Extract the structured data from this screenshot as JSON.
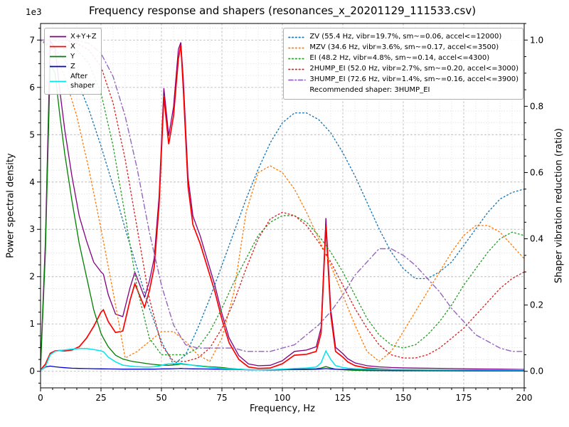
{
  "title": "Frequency response and shapers (resonances_x_20201129_111533.csv)",
  "axes": {
    "offset_label": "1e3",
    "x_label": "Frequency, Hz",
    "y_left_label": "Power spectral density",
    "y_right_label": "Shaper vibration reduction (ratio)",
    "x_ticks": [
      0,
      25,
      50,
      75,
      100,
      125,
      150,
      175,
      200
    ],
    "y_left_ticks": [
      0,
      1,
      2,
      3,
      4,
      5,
      6,
      7
    ],
    "y_right_ticks": [
      "0.0",
      "0.2",
      "0.4",
      "0.6",
      "0.8",
      "1.0"
    ]
  },
  "legend_psd": {
    "items": [
      {
        "name": "xyz",
        "label": "X+Y+Z",
        "color": "#800080",
        "style": "solid"
      },
      {
        "name": "x",
        "label": "X",
        "color": "#ff0000",
        "style": "solid"
      },
      {
        "name": "y",
        "label": "Y",
        "color": "#008000",
        "style": "solid"
      },
      {
        "name": "z",
        "label": "Z",
        "color": "#0000cd",
        "style": "solid"
      },
      {
        "name": "after-shaper",
        "label": "After\nshaper",
        "color": "#00e5ee",
        "style": "solid"
      }
    ]
  },
  "legend_shapers": {
    "items": [
      {
        "name": "zv",
        "label": "ZV (55.4 Hz, vibr=19.7%, sm~=0.06, accel<=12000)",
        "color": "#1f77b4",
        "style": "dotted"
      },
      {
        "name": "mzv",
        "label": "MZV (34.6 Hz, vibr=3.6%, sm~=0.17, accel<=3500)",
        "color": "#ff7f0e",
        "style": "dotted"
      },
      {
        "name": "ei",
        "label": "EI (48.2 Hz, vibr=4.8%, sm~=0.14, accel<=4300)",
        "color": "#2ca02c",
        "style": "dotted"
      },
      {
        "name": "2hump-ei",
        "label": "2HUMP_EI (52.0 Hz, vibr=2.7%, sm~=0.20, accel<=3000)",
        "color": "#d62728",
        "style": "dotted"
      },
      {
        "name": "3hump-ei",
        "label": "3HUMP_EI (72.6 Hz, vibr=1.4%, sm~=0.16, accel<=3900)",
        "color": "#9467bd",
        "style": "dashdot"
      }
    ],
    "note": "Recommended shaper: 3HUMP_EI"
  },
  "chart_data": {
    "type": "line",
    "title": "Frequency response and shapers (resonances_x_20201129_111533.csv)",
    "xlabel": "Frequency, Hz",
    "ylabel_left": "Power spectral density",
    "ylabel_right": "Shaper vibration reduction (ratio)",
    "xlim": [
      0,
      200
    ],
    "ylim_left": [
      -350,
      7350
    ],
    "ylim_right": [
      -0.05,
      1.05
    ],
    "x_major_step": 25,
    "x_minor_step": 5,
    "y_left_major_step": 1000,
    "y_left_minor_step": 250,
    "y_right_major_step": 0.2,
    "y_right_minor_step": 0.05,
    "grid": true,
    "recommended_shaper": "3HUMP_EI",
    "psd_freqs": [
      0,
      2,
      4,
      6,
      8,
      10,
      13,
      16,
      19,
      22,
      25,
      26,
      28,
      31,
      34,
      37,
      39,
      41,
      43,
      45,
      47,
      49,
      51,
      52,
      53,
      55,
      57,
      58,
      59,
      61,
      63,
      66,
      69,
      72,
      75,
      78,
      82,
      86,
      90,
      95,
      100,
      105,
      110,
      114,
      116,
      118,
      120,
      122,
      125,
      127,
      130,
      135,
      140,
      145,
      150,
      160,
      170,
      180,
      190,
      200
    ],
    "psd_series": [
      {
        "name": "X+Y+Z",
        "color": "#800080",
        "style": "solid",
        "width": 1.3,
        "axis": "left",
        "values": [
          110,
          2740,
          6990,
          6825,
          5925,
          5105,
          4115,
          3280,
          2758,
          2305,
          2102,
          2052,
          1620,
          1208,
          1156,
          1766,
          2095,
          1830,
          1565,
          1900,
          2391,
          3683,
          5982,
          5480,
          4977,
          5589,
          6803,
          6950,
          6208,
          4094,
          3282,
          2865,
          2348,
          1835,
          1222,
          702,
          331,
          155,
          117,
          126,
          225,
          420,
          448,
          518,
          918,
          3238,
          1318,
          507,
          373,
          266,
          178,
          118,
          93,
          80,
          73,
          65,
          58,
          50,
          45,
          40
        ]
      },
      {
        "name": "X",
        "color": "#ff0000",
        "style": "solid",
        "width": 1.7,
        "axis": "left",
        "values": [
          30,
          150,
          380,
          430,
          440,
          430,
          450,
          520,
          700,
          950,
          1250,
          1300,
          1050,
          820,
          850,
          1500,
          1850,
          1600,
          1350,
          1700,
          2200,
          3500,
          5800,
          5300,
          4800,
          5400,
          6600,
          6900,
          6000,
          3900,
          3100,
          2700,
          2200,
          1700,
          1100,
          600,
          250,
          90,
          60,
          70,
          160,
          340,
          360,
          420,
          800,
          3080,
          1200,
          420,
          300,
          200,
          120,
          70,
          50,
          40,
          35,
          30,
          25,
          20,
          18,
          15
        ]
      },
      {
        "name": "Y",
        "color": "#008000",
        "style": "solid",
        "width": 1.3,
        "axis": "left",
        "values": [
          60,
          2500,
          6500,
          6300,
          5400,
          4600,
          3600,
          2700,
          2000,
          1300,
          800,
          700,
          520,
          340,
          260,
          220,
          200,
          185,
          170,
          155,
          145,
          135,
          130,
          128,
          125,
          135,
          145,
          155,
          150,
          140,
          130,
          115,
          100,
          90,
          80,
          62,
          45,
          33,
          27,
          26,
          32,
          42,
          48,
          55,
          70,
          100,
          70,
          45,
          33,
          28,
          22,
          16,
          13,
          11,
          10,
          9,
          8,
          7,
          6,
          5
        ]
      },
      {
        "name": "Z",
        "color": "#0000cd",
        "style": "solid",
        "width": 1.3,
        "axis": "left",
        "values": [
          20,
          90,
          110,
          95,
          85,
          75,
          65,
          60,
          58,
          55,
          52,
          52,
          50,
          48,
          46,
          46,
          45,
          45,
          45,
          45,
          46,
          48,
          52,
          52,
          52,
          54,
          58,
          60,
          58,
          54,
          52,
          50,
          48,
          45,
          42,
          40,
          36,
          32,
          30,
          30,
          33,
          38,
          40,
          43,
          48,
          58,
          48,
          42,
          40,
          38,
          36,
          32,
          30,
          29,
          28,
          26,
          25,
          23,
          21,
          20
        ]
      },
      {
        "name": "After shaper",
        "color": "#00e5ee",
        "style": "solid",
        "width": 1.5,
        "axis": "left",
        "values": [
          20,
          100,
          350,
          420,
          440,
          450,
          470,
          480,
          480,
          460,
          430,
          415,
          300,
          200,
          130,
          110,
          100,
          95,
          90,
          90,
          95,
          110,
          140,
          150,
          155,
          160,
          168,
          170,
          160,
          145,
          125,
          105,
          88,
          75,
          60,
          50,
          42,
          35,
          30,
          35,
          45,
          60,
          70,
          90,
          180,
          430,
          250,
          120,
          80,
          65,
          55,
          45,
          40,
          38,
          35,
          32,
          30,
          30,
          28,
          28
        ]
      }
    ],
    "shaper_freqs": [
      0,
      5,
      10,
      15,
      20,
      25,
      30,
      35,
      40,
      45,
      50,
      55,
      60,
      65,
      70,
      75,
      80,
      85,
      90,
      95,
      100,
      105,
      110,
      115,
      120,
      125,
      130,
      135,
      140,
      145,
      150,
      155,
      160,
      165,
      170,
      175,
      180,
      185,
      190,
      195,
      200
    ],
    "shaper_series": [
      {
        "name": "ZV",
        "shaper_freq_hz": 55.4,
        "vibr_pct": 19.7,
        "smoothing": 0.06,
        "max_accel": 12000,
        "color": "#1f77b4",
        "style": "dotted",
        "width": 1.4,
        "axis": "right",
        "values": [
          1.0,
          0.98,
          0.94,
          0.88,
          0.79,
          0.68,
          0.56,
          0.43,
          0.31,
          0.19,
          0.09,
          0.02,
          0.05,
          0.13,
          0.22,
          0.32,
          0.42,
          0.52,
          0.61,
          0.69,
          0.75,
          0.78,
          0.78,
          0.76,
          0.72,
          0.66,
          0.59,
          0.51,
          0.43,
          0.36,
          0.31,
          0.28,
          0.28,
          0.3,
          0.33,
          0.38,
          0.43,
          0.48,
          0.52,
          0.54,
          0.55
        ]
      },
      {
        "name": "MZV",
        "shaper_freq_hz": 34.6,
        "vibr_pct": 3.6,
        "smoothing": 0.17,
        "max_accel": 3500,
        "color": "#ff7f0e",
        "style": "dotted",
        "width": 1.4,
        "axis": "right",
        "values": [
          1.0,
          0.97,
          0.89,
          0.77,
          0.61,
          0.43,
          0.24,
          0.04,
          0.06,
          0.09,
          0.12,
          0.12,
          0.09,
          0.05,
          0.03,
          0.1,
          0.24,
          0.48,
          0.6,
          0.62,
          0.6,
          0.55,
          0.48,
          0.4,
          0.32,
          0.23,
          0.14,
          0.06,
          0.03,
          0.06,
          0.12,
          0.18,
          0.24,
          0.3,
          0.36,
          0.41,
          0.44,
          0.44,
          0.42,
          0.38,
          0.34
        ]
      },
      {
        "name": "EI",
        "shaper_freq_hz": 48.2,
        "vibr_pct": 4.8,
        "smoothing": 0.14,
        "max_accel": 4300,
        "color": "#2ca02c",
        "style": "dotted",
        "width": 1.4,
        "axis": "right",
        "values": [
          1.0,
          1.0,
          0.99,
          0.97,
          0.93,
          0.84,
          0.68,
          0.47,
          0.25,
          0.1,
          0.05,
          0.05,
          0.05,
          0.07,
          0.12,
          0.19,
          0.27,
          0.34,
          0.41,
          0.45,
          0.47,
          0.47,
          0.45,
          0.41,
          0.36,
          0.3,
          0.23,
          0.16,
          0.11,
          0.08,
          0.07,
          0.08,
          0.11,
          0.15,
          0.2,
          0.26,
          0.31,
          0.36,
          0.4,
          0.42,
          0.41
        ]
      },
      {
        "name": "2HUMP_EI",
        "shaper_freq_hz": 52.0,
        "vibr_pct": 2.7,
        "smoothing": 0.2,
        "max_accel": 3000,
        "color": "#d62728",
        "style": "dotted",
        "width": 1.4,
        "axis": "right",
        "values": [
          1.0,
          1.0,
          1.0,
          0.99,
          0.97,
          0.92,
          0.81,
          0.64,
          0.43,
          0.22,
          0.08,
          0.03,
          0.03,
          0.04,
          0.07,
          0.13,
          0.21,
          0.31,
          0.4,
          0.46,
          0.48,
          0.47,
          0.44,
          0.39,
          0.33,
          0.26,
          0.19,
          0.13,
          0.08,
          0.05,
          0.04,
          0.04,
          0.05,
          0.07,
          0.1,
          0.13,
          0.17,
          0.21,
          0.25,
          0.28,
          0.3
        ]
      },
      {
        "name": "3HUMP_EI",
        "shaper_freq_hz": 72.6,
        "vibr_pct": 1.4,
        "smoothing": 0.16,
        "max_accel": 3900,
        "color": "#9467bd",
        "style": "dashdot",
        "width": 1.4,
        "axis": "right",
        "values": [
          1.0,
          1.0,
          1.0,
          1.0,
          0.99,
          0.96,
          0.89,
          0.77,
          0.61,
          0.42,
          0.26,
          0.14,
          0.08,
          0.07,
          0.07,
          0.07,
          0.07,
          0.06,
          0.06,
          0.06,
          0.07,
          0.08,
          0.11,
          0.14,
          0.18,
          0.23,
          0.29,
          0.33,
          0.37,
          0.37,
          0.35,
          0.32,
          0.28,
          0.24,
          0.19,
          0.15,
          0.11,
          0.09,
          0.07,
          0.06,
          0.06
        ]
      }
    ]
  }
}
